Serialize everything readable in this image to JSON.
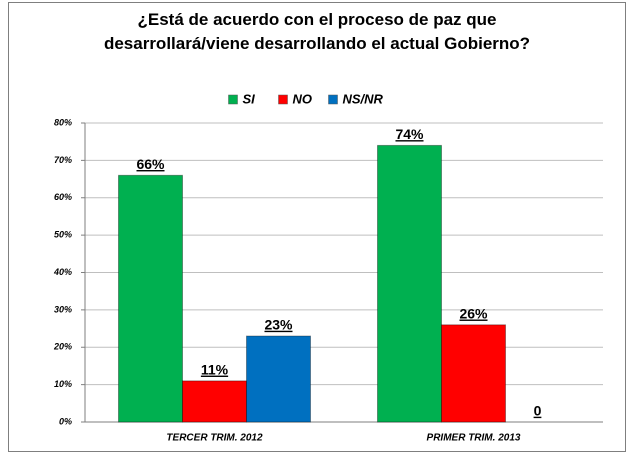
{
  "chart_data": {
    "type": "bar",
    "title": "¿Está de acuerdo con el proceso de paz que desarrollará/viene desarrollando el actual Gobierno?",
    "categories": [
      "TERCER TRIM. 2012",
      "PRIMER TRIM. 2013"
    ],
    "series": [
      {
        "name": "SI",
        "color": "#00b050",
        "values": [
          66,
          74
        ],
        "value_labels": [
          "66%",
          "74%"
        ]
      },
      {
        "name": "NO",
        "color": "#ff0000",
        "values": [
          11,
          26
        ],
        "value_labels": [
          "11%",
          "26%"
        ]
      },
      {
        "name": "NS/NR",
        "color": "#0070c0",
        "values": [
          23,
          0
        ],
        "value_labels": [
          "23%",
          "0"
        ]
      }
    ],
    "ylim": [
      0,
      80
    ],
    "yticks": [
      {
        "value": 0,
        "label": "0%"
      },
      {
        "value": 10,
        "label": "10%"
      },
      {
        "value": 20,
        "label": "20%"
      },
      {
        "value": 30,
        "label": "30%"
      },
      {
        "value": 40,
        "label": "40%"
      },
      {
        "value": 50,
        "label": "50%"
      },
      {
        "value": 60,
        "label": "60%"
      },
      {
        "value": 70,
        "label": "70%"
      },
      {
        "value": 80,
        "label": "80%"
      }
    ],
    "grid": true,
    "legend": "top"
  }
}
